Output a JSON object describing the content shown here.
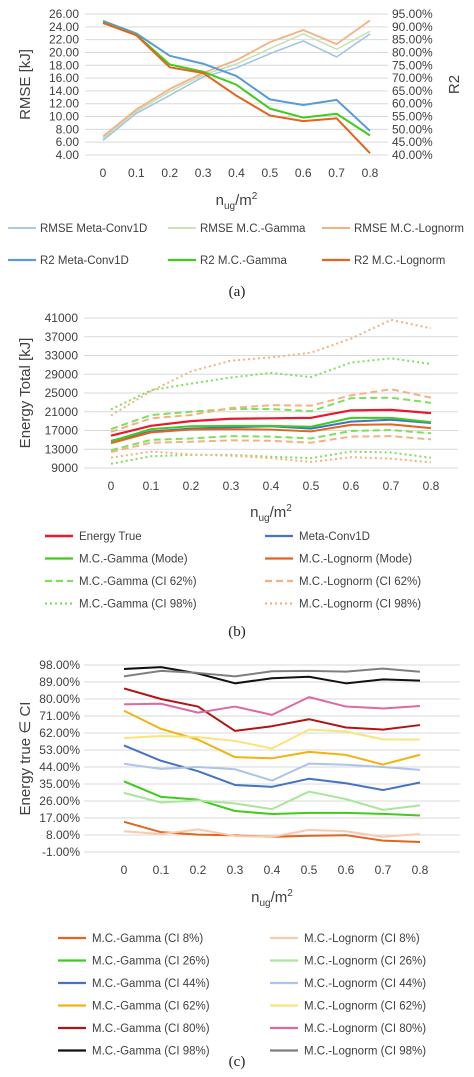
{
  "captions": [
    "(a)",
    "(b)",
    "(c)"
  ],
  "chart_data": [
    {
      "type": "line",
      "title": "",
      "xlabel": "n_ug/m²",
      "xlabel_main": "n",
      "xlabel_sub": "ug",
      "xlabel_rest": "/m",
      "xlabel_sup": "2",
      "ylabel": "RMSE [kJ]",
      "y2label": "R2",
      "x": [
        0,
        0.1,
        0.2,
        0.3,
        0.4,
        0.5,
        0.6,
        0.7,
        0.8
      ],
      "xticks": [
        "0",
        "0.1",
        "0.2",
        "0.3",
        "0.4",
        "0.5",
        "0.6",
        "0.7",
        "0.8"
      ],
      "ylim": [
        4,
        26
      ],
      "yticks": [
        "4.00",
        "6.00",
        "8.00",
        "10.00",
        "12.00",
        "14.00",
        "16.00",
        "18.00",
        "20.00",
        "22.00",
        "24.00",
        "26.00"
      ],
      "y2lim": [
        40,
        95
      ],
      "y2ticks": [
        "40.00%",
        "45.00%",
        "50.00%",
        "55.00%",
        "60.00%",
        "65.00%",
        "70.00%",
        "75.00%",
        "80.00%",
        "85.00%",
        "90.00%",
        "95.00%"
      ],
      "grid": true,
      "legend_position": "bottom",
      "series": [
        {
          "name": "RMSE Meta-Conv1D",
          "axis": "left",
          "color": "#9dc3e6",
          "width": 1.5,
          "dash": "",
          "values": [
            6.3,
            10.5,
            13.3,
            16.2,
            17.6,
            19.8,
            21.8,
            19.3,
            22.9
          ]
        },
        {
          "name": "RMSE M.C.-Gamma",
          "axis": "left",
          "color": "#c5e0b4",
          "width": 1.5,
          "dash": "",
          "values": [
            6.6,
            10.8,
            13.9,
            16.5,
            18.2,
            20.6,
            22.9,
            20.5,
            23.3
          ]
        },
        {
          "name": "RMSE M.C.-Lognorm",
          "axis": "left",
          "color": "#f4b183",
          "width": 1.8,
          "dash": "",
          "values": [
            6.9,
            11.1,
            14.3,
            16.8,
            18.8,
            21.6,
            23.5,
            21.3,
            25.0
          ]
        },
        {
          "name": "R2 Meta-Conv1D",
          "axis": "right",
          "color": "#5b9bd5",
          "width": 2,
          "dash": "",
          "values": [
            92.3,
            87.4,
            78.7,
            75.6,
            70.8,
            61.7,
            59.5,
            61.5,
            49.4
          ]
        },
        {
          "name": "R2 M.C.-Gamma",
          "axis": "right",
          "color": "#3fcc1a",
          "width": 2,
          "dash": "",
          "values": [
            91.6,
            86.9,
            75.3,
            72.5,
            67.4,
            58.1,
            54.6,
            56.1,
            47.6
          ]
        },
        {
          "name": "R2 M.C.-Lognorm",
          "axis": "right",
          "color": "#e3631f",
          "width": 2,
          "dash": "",
          "values": [
            91.5,
            86.7,
            74.2,
            72.0,
            63.1,
            55.4,
            53.2,
            54.3,
            40.7
          ]
        }
      ]
    },
    {
      "type": "line",
      "title": "",
      "xlabel": "n_ug/m²",
      "xlabel_main": "n",
      "xlabel_sub": "ug",
      "xlabel_rest": "/m",
      "xlabel_sup": "2",
      "ylabel": "Energy Total [kJ]",
      "x": [
        0,
        0.1,
        0.2,
        0.3,
        0.4,
        0.5,
        0.6,
        0.7,
        0.8
      ],
      "xticks": [
        "0",
        "0.1",
        "0.2",
        "0.3",
        "0.4",
        "0.5",
        "0.6",
        "0.7",
        "0.8"
      ],
      "ylim": [
        9000,
        41000
      ],
      "yticks": [
        "9000",
        "13000",
        "17000",
        "21000",
        "25000",
        "29000",
        "33000",
        "37000",
        "41000"
      ],
      "grid": true,
      "legend_position": "bottom",
      "series": [
        {
          "name": "Energy True",
          "color": "#e8192c",
          "width": 2.2,
          "dash": "",
          "values": [
            15900,
            18000,
            19000,
            19500,
            19600,
            19700,
            21300,
            21400,
            20700
          ]
        },
        {
          "name": "Meta-Conv1D",
          "color": "#4472c4",
          "width": 2,
          "dash": "",
          "values": [
            14800,
            16800,
            17400,
            17700,
            17900,
            17400,
            18900,
            19300,
            18600
          ]
        },
        {
          "name": "M.C.-Gamma (Mode)",
          "color": "#3fcc1a",
          "width": 2,
          "dash": "",
          "values": [
            14700,
            17300,
            17900,
            18000,
            18000,
            17800,
            19700,
            19700,
            18800
          ]
        },
        {
          "name": "M.C.-Lognorm (Mode)",
          "color": "#e3631f",
          "width": 2,
          "dash": "",
          "values": [
            14300,
            16600,
            17200,
            17300,
            17200,
            16800,
            18200,
            18300,
            17500
          ]
        },
        {
          "name": "M.C.-Gamma (CI 62%)",
          "color": "#7ce05a",
          "width": 2,
          "dash": "7,4",
          "values": [
            17300,
            20300,
            21000,
            21600,
            21600,
            21100,
            23900,
            24000,
            22900
          ]
        },
        {
          "name": "M.C.-Lognorm (CI 62%)",
          "color": "#f4b183",
          "width": 2,
          "dash": "7,4",
          "values": [
            16700,
            19600,
            20300,
            21800,
            22400,
            22300,
            24500,
            25800,
            24000
          ]
        },
        {
          "name": "M.C.-Gamma (CI 98%)",
          "color": "#7ce05a",
          "width": 2,
          "dash": "2,3",
          "values": [
            21500,
            25600,
            27000,
            28300,
            29300,
            28400,
            31500,
            32400,
            31200
          ]
        },
        {
          "name": "M.C.-Lognorm (CI 98%)",
          "color": "#f4b183",
          "width": 2,
          "dash": "2,3",
          "values": [
            20200,
            25400,
            29600,
            31900,
            32600,
            33600,
            36600,
            40600,
            38800
          ]
        },
        {
          "name": "",
          "color": "#7ce05a",
          "width": 2,
          "dash": "7,4",
          "values": [
            12800,
            15000,
            15300,
            15800,
            15700,
            15300,
            16900,
            17100,
            16400
          ]
        },
        {
          "name": "",
          "color": "#f4b183",
          "width": 2,
          "dash": "7,4",
          "values": [
            12400,
            14400,
            14600,
            14900,
            14800,
            14400,
            15700,
            15800,
            15100
          ]
        },
        {
          "name": "",
          "color": "#7ce05a",
          "width": 2,
          "dash": "2,3",
          "values": [
            9900,
            11500,
            11800,
            11800,
            11400,
            11100,
            12500,
            12300,
            11200
          ]
        },
        {
          "name": "",
          "color": "#f4b183",
          "width": 2,
          "dash": "2,3",
          "values": [
            11200,
            12500,
            11900,
            11600,
            11100,
            10300,
            11300,
            11000,
            10200
          ]
        }
      ]
    },
    {
      "type": "line",
      "title": "",
      "xlabel": "n_ug/m²",
      "xlabel_main": "n",
      "xlabel_sub": "ug",
      "xlabel_rest": "/m",
      "xlabel_sup": "2",
      "ylabel": "Energy true ∈ CI",
      "x": [
        0,
        0.1,
        0.2,
        0.3,
        0.4,
        0.5,
        0.6,
        0.7,
        0.8
      ],
      "xticks": [
        "0",
        "0.1",
        "0.2",
        "0.3",
        "0.4",
        "0.5",
        "0.6",
        "0.7",
        "0.8"
      ],
      "ylim": [
        -1,
        98
      ],
      "yticks": [
        "-1.00%",
        "8.00%",
        "17.00%",
        "26.00%",
        "35.00%",
        "44.00%",
        "53.00%",
        "62.00%",
        "71.00%",
        "80.00%",
        "89.00%",
        "98.00%"
      ],
      "grid": true,
      "legend_position": "bottom",
      "series": [
        {
          "name": "M.C.-Gamma (CI 8%)",
          "color": "#e3631f",
          "width": 2,
          "dash": "",
          "values": [
            15,
            9.5,
            8.2,
            7.8,
            7,
            7.6,
            7.9,
            5,
            4.3
          ]
        },
        {
          "name": "M.C.-Lognorm (CI 8%)",
          "color": "#f8cbad",
          "width": 2,
          "dash": "",
          "values": [
            10,
            8.5,
            11,
            7.5,
            7,
            10.7,
            10,
            7,
            8.5
          ]
        },
        {
          "name": "M.C.-Gamma (CI 26%)",
          "color": "#3fcc1a",
          "width": 2,
          "dash": "",
          "values": [
            36.4,
            28.2,
            26.7,
            20.7,
            19.1,
            19.7,
            19.7,
            19.2,
            18.3
          ]
        },
        {
          "name": "M.C.-Lognorm (CI 26%)",
          "color": "#a9e69b",
          "width": 2,
          "dash": "",
          "values": [
            30.3,
            25.2,
            26.3,
            24.7,
            21.7,
            31,
            27,
            21.3,
            23.7
          ]
        },
        {
          "name": "M.C.-Gamma (CI 44%)",
          "color": "#4472c4",
          "width": 2,
          "dash": "",
          "values": [
            55.4,
            47.3,
            41.8,
            34.5,
            33.5,
            37.8,
            35.4,
            31.8,
            35.8
          ]
        },
        {
          "name": "M.C.-Lognorm (CI 44%)",
          "color": "#adc3e8",
          "width": 2,
          "dash": "",
          "values": [
            45.7,
            43,
            44,
            42.8,
            36.8,
            45.8,
            45.2,
            44,
            42.5
          ]
        },
        {
          "name": "M.C.-Gamma (CI 62%)",
          "color": "#f2b20f",
          "width": 2,
          "dash": "",
          "values": [
            73.8,
            64.2,
            58.5,
            49.2,
            48.6,
            52,
            50.4,
            45.3,
            50.5
          ]
        },
        {
          "name": "M.C.-Lognorm (CI 62%)",
          "color": "#fbe37c",
          "width": 2,
          "dash": "",
          "values": [
            59.3,
            60.4,
            59.8,
            57.8,
            53.8,
            63.8,
            62.8,
            58.6,
            58.5
          ]
        },
        {
          "name": "M.C.-Gamma (CI 80%)",
          "color": "#b01414",
          "width": 2,
          "dash": "",
          "values": [
            85.6,
            80,
            76,
            63.1,
            65.6,
            69.3,
            64.9,
            63.8,
            66.2
          ]
        },
        {
          "name": "M.C.-Lognorm (CI 80%)",
          "color": "#dc6aa0",
          "width": 2,
          "dash": "",
          "values": [
            77.2,
            77.5,
            72.8,
            76,
            71.6,
            81,
            76,
            75,
            76.3
          ]
        },
        {
          "name": "M.C.-Gamma (CI 98%)",
          "color": "#111111",
          "width": 2,
          "dash": "",
          "values": [
            95.9,
            96.9,
            93.5,
            88.3,
            91,
            91.8,
            88.3,
            90.4,
            89.7
          ]
        },
        {
          "name": "M.C.-Lognorm (CI 98%)",
          "color": "#7f7f7f",
          "width": 2,
          "dash": "",
          "values": [
            92,
            94.9,
            93.8,
            92,
            94.7,
            94.9,
            94.5,
            96.1,
            94.4
          ]
        }
      ]
    }
  ]
}
